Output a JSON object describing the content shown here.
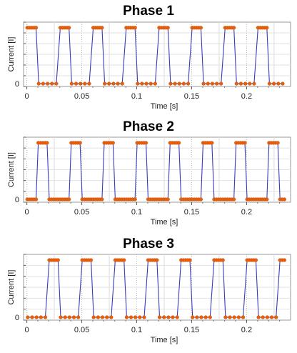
{
  "chart_data": [
    {
      "type": "line",
      "title": "Phase 1",
      "xlabel": "Time [s]",
      "ylabel": "Current [I]",
      "xlim": [
        -0.003,
        0.24
      ],
      "ylim": [
        -0.05,
        1.1
      ],
      "x_ticks": [
        0,
        0.05,
        0.1,
        0.15,
        0.2
      ],
      "x_tick_labels": [
        "0",
        "0.05",
        "0.1",
        "0.15",
        "0.2"
      ],
      "y_ticks": [
        0
      ],
      "y_tick_labels": [
        "0"
      ],
      "grid": true,
      "legend": "none",
      "line_color": "#3a3ab8",
      "marker_color": "#e8600c",
      "period": 0.03,
      "pulse_on": [
        0.0,
        0.01
      ],
      "t_end": 0.236,
      "samples_per_segment": 5
    },
    {
      "type": "line",
      "title": "Phase 2",
      "xlabel": "Time [s]",
      "ylabel": "Current [I]",
      "xlim": [
        -0.003,
        0.24
      ],
      "ylim": [
        -0.05,
        1.1
      ],
      "x_ticks": [
        0,
        0.05,
        0.1,
        0.15,
        0.2
      ],
      "x_tick_labels": [
        "0",
        "0.05",
        "0.1",
        "0.15",
        "0.2"
      ],
      "y_ticks": [
        0
      ],
      "y_tick_labels": [
        "0"
      ],
      "grid": true,
      "legend": "none",
      "line_color": "#3a3ab8",
      "marker_color": "#e8600c",
      "period": 0.03,
      "pulse_on": [
        0.01,
        0.02
      ],
      "t_end": 0.236,
      "samples_per_segment": 5
    },
    {
      "type": "line",
      "title": "Phase 3",
      "xlabel": "Time [s]",
      "ylabel": "Current [I]",
      "xlim": [
        -0.003,
        0.24
      ],
      "ylim": [
        -0.05,
        1.1
      ],
      "x_ticks": [
        0,
        0.05,
        0.1,
        0.15,
        0.2
      ],
      "x_tick_labels": [
        "0",
        "0.05",
        "0.1",
        "0.15",
        "0.2"
      ],
      "y_ticks": [
        0
      ],
      "y_tick_labels": [
        "0"
      ],
      "grid": true,
      "legend": "none",
      "line_color": "#3a3ab8",
      "marker_color": "#e8600c",
      "period": 0.03,
      "pulse_on": [
        0.02,
        0.03
      ],
      "t_end": 0.236,
      "samples_per_segment": 5
    }
  ]
}
